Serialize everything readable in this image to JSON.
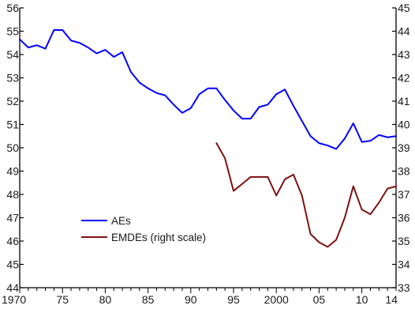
{
  "chart_data": {
    "type": "line",
    "title": "",
    "xlabel": "",
    "ylabel": "",
    "x_tick_labels": [
      "1970",
      "75",
      "80",
      "85",
      "90",
      "95",
      "2000",
      "05",
      "10",
      "14"
    ],
    "x_tick_years": [
      1970,
      1975,
      1980,
      1985,
      1990,
      1995,
      2000,
      2005,
      2010,
      2014
    ],
    "xlim": [
      1970,
      2014
    ],
    "ylim_left": [
      44,
      56
    ],
    "ylim_right": [
      33,
      45
    ],
    "y_left_ticks": [
      44,
      45,
      46,
      47,
      48,
      49,
      50,
      51,
      52,
      53,
      54,
      55,
      56
    ],
    "y_right_ticks": [
      33,
      34,
      35,
      36,
      37,
      38,
      39,
      40,
      41,
      42,
      43,
      44,
      45
    ],
    "grid": false,
    "legend_position": "lower-left",
    "series": [
      {
        "name": "AEs",
        "axis": "left",
        "color": "#0000ff",
        "x": [
          1970,
          1971,
          1972,
          1973,
          1974,
          1975,
          1976,
          1977,
          1978,
          1979,
          1980,
          1981,
          1982,
          1983,
          1984,
          1985,
          1986,
          1987,
          1988,
          1989,
          1990,
          1991,
          1992,
          1993,
          1994,
          1995,
          1996,
          1997,
          1998,
          1999,
          2000,
          2001,
          2002,
          2003,
          2004,
          2005,
          2006,
          2007,
          2008,
          2009,
          2010,
          2011,
          2012,
          2013,
          2014
        ],
        "y": [
          54.65,
          54.3,
          54.4,
          54.25,
          55.05,
          55.05,
          54.6,
          54.5,
          54.3,
          54.05,
          54.2,
          53.9,
          54.1,
          53.25,
          52.8,
          52.55,
          52.35,
          52.25,
          51.85,
          51.5,
          51.7,
          52.3,
          52.55,
          52.55,
          52.05,
          51.6,
          51.25,
          51.25,
          51.75,
          51.85,
          52.3,
          52.5,
          51.8,
          51.15,
          50.5,
          50.2,
          50.1,
          49.95,
          50.4,
          51.05,
          50.25,
          50.3,
          50.55,
          50.45,
          50.5
        ]
      },
      {
        "name": "EMDEs (right scale)",
        "axis": "right",
        "color": "#7f1010",
        "x": [
          1993,
          1994,
          1995,
          1996,
          1997,
          1998,
          1999,
          2000,
          2001,
          2002,
          2003,
          2004,
          2005,
          2006,
          2007,
          2008,
          2009,
          2010,
          2011,
          2012,
          2013,
          2014
        ],
        "y": [
          39.2,
          38.55,
          37.15,
          37.45,
          37.75,
          37.75,
          37.75,
          36.95,
          37.65,
          37.85,
          36.95,
          35.3,
          34.95,
          34.75,
          35.05,
          36.0,
          37.35,
          36.35,
          36.15,
          36.65,
          37.25,
          37.35
        ]
      }
    ]
  }
}
